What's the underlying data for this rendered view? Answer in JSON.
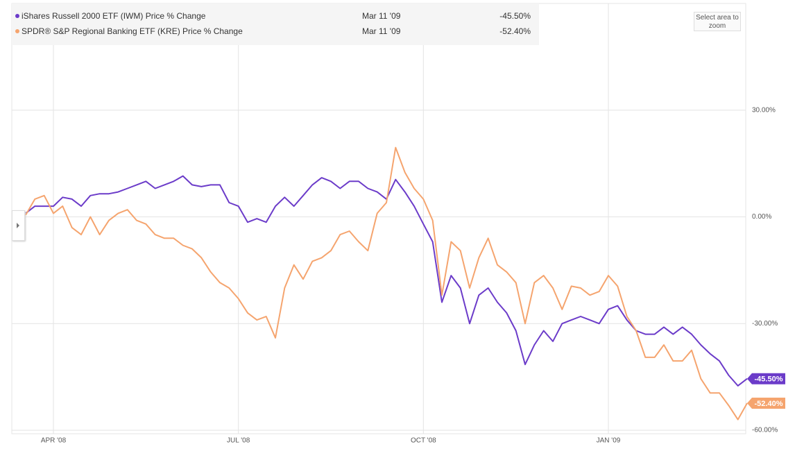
{
  "chart_data": {
    "type": "line",
    "legend_date": "Mar 11 '09",
    "zoom_label": "Select area to zoom",
    "categories": [
      null,
      null,
      null,
      "APR '08",
      null,
      null,
      null,
      null,
      null,
      null,
      null,
      null,
      null,
      null,
      null,
      null,
      null,
      null,
      null,
      null,
      null,
      null,
      null,
      "JUL '08",
      null,
      null,
      null,
      null,
      null,
      null,
      null,
      null,
      null,
      null,
      null,
      null,
      null,
      null,
      null,
      null,
      null,
      null,
      null,
      "OCT '08",
      null,
      null,
      null,
      null,
      null,
      null,
      null,
      null,
      null,
      null,
      null,
      null,
      null,
      null,
      null,
      null,
      null,
      null,
      null,
      "JAN '09",
      null,
      null,
      null,
      null,
      null,
      null,
      null,
      null,
      null,
      null,
      null,
      null,
      null,
      null,
      null
    ],
    "series": [
      {
        "name": "iShares Russell 2000 ETF (IWM) Price % Change",
        "color": "#6b3bc9",
        "values": [
          1,
          3,
          3,
          3,
          5.5,
          5,
          3,
          6,
          6.5,
          6.5,
          7,
          8,
          9,
          10,
          8,
          9,
          10,
          11.5,
          9,
          8.5,
          9,
          9,
          4,
          3,
          -1.5,
          -0.5,
          -1.5,
          3,
          5.5,
          3,
          6,
          9,
          11,
          10,
          8,
          10,
          10,
          8,
          7,
          5,
          10.5,
          7,
          3,
          -2,
          -7,
          -24,
          -16.5,
          -20,
          -30,
          -22,
          -20,
          -24,
          -27,
          -32,
          -41.5,
          -36,
          -32,
          -35,
          -30,
          -29,
          -28,
          -29,
          -30,
          -26,
          -25,
          -29,
          -32,
          -33,
          -33,
          -31,
          -33,
          -31,
          -33,
          -36,
          -38.5,
          -40.5,
          -44.5,
          -47.5,
          -45.5
        ],
        "value_labels": [
          null,
          null,
          null,
          null,
          null,
          null,
          null,
          null,
          null,
          null,
          null,
          null,
          null,
          null,
          null,
          null,
          null,
          null,
          null,
          null,
          null,
          null,
          null,
          null,
          null,
          null,
          null,
          null,
          null,
          null,
          null,
          null,
          null,
          null,
          null,
          null,
          null,
          null,
          null,
          null,
          null,
          null,
          null,
          null,
          null,
          null,
          null,
          null,
          null,
          null,
          null,
          null,
          null,
          null,
          null,
          null,
          null,
          null,
          null,
          null,
          null,
          null,
          null,
          null,
          null,
          null,
          null,
          null,
          null,
          null,
          null,
          null,
          null,
          null,
          null,
          null,
          null,
          null,
          "-45.50%"
        ]
      },
      {
        "name": "SPDR® S&P Regional Banking ETF (KRE) Price % Change",
        "color": "#f5a46e",
        "values": [
          0.5,
          5,
          6,
          1,
          3,
          -3,
          -5,
          0,
          -5,
          -1,
          1,
          2,
          -1,
          -2,
          -5,
          -6,
          -6,
          -8,
          -9,
          -11.5,
          -15.5,
          -18.5,
          -20,
          -23,
          -27,
          -29,
          -28,
          -34,
          -20,
          -13.5,
          -17.5,
          -12.5,
          -11.5,
          -9.5,
          -5,
          -4,
          -7,
          -9.5,
          1,
          4,
          19.5,
          12.5,
          8,
          5,
          -1,
          -22,
          -7,
          -9.5,
          -20,
          -11.5,
          -6,
          -13.5,
          -15.5,
          -18.5,
          -30,
          -18.5,
          -16.5,
          -20,
          -26,
          -19.5,
          -20,
          -22,
          -21,
          -16.5,
          -19.5,
          -28,
          -32,
          -39.5,
          -39.5,
          -36,
          -40.5,
          -40.5,
          -37.5,
          -45.5,
          -49.5,
          -49.5,
          -53,
          -57,
          -52.4
        ],
        "value_labels": [
          null,
          null,
          null,
          null,
          null,
          null,
          null,
          null,
          null,
          null,
          null,
          null,
          null,
          null,
          null,
          null,
          null,
          null,
          null,
          null,
          null,
          null,
          null,
          null,
          null,
          null,
          null,
          null,
          null,
          null,
          null,
          null,
          null,
          null,
          null,
          null,
          null,
          null,
          null,
          null,
          null,
          null,
          null,
          null,
          null,
          null,
          null,
          null,
          null,
          null,
          null,
          null,
          null,
          null,
          null,
          null,
          null,
          null,
          null,
          null,
          null,
          null,
          null,
          null,
          null,
          null,
          null,
          null,
          null,
          null,
          null,
          null,
          null,
          null,
          null,
          null,
          null,
          null,
          "-52.40%"
        ]
      }
    ],
    "ylim": [
      -60,
      60
    ],
    "yticks": [
      {
        "value": 30,
        "label": "30.00%"
      },
      {
        "value": 0,
        "label": "0.00%"
      },
      {
        "value": -30,
        "label": "-30.00%"
      },
      {
        "value": -60,
        "label": "-60.00%"
      }
    ],
    "grid": true
  }
}
